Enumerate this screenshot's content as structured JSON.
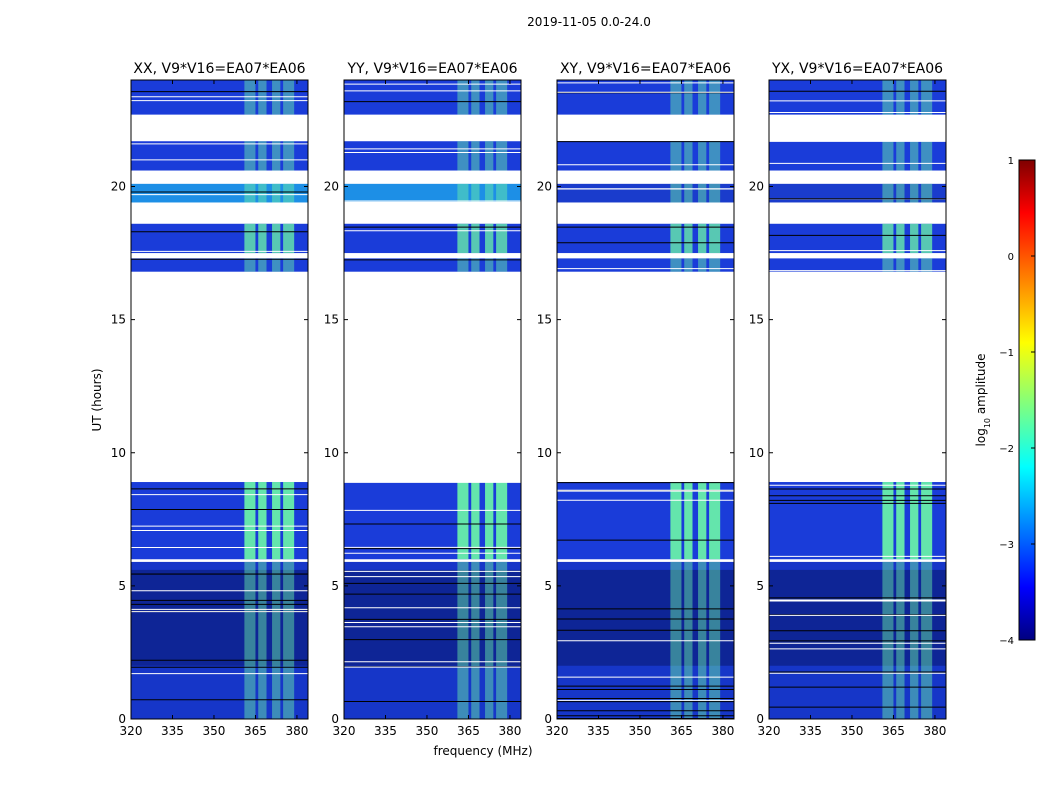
{
  "figure": {
    "title": "2019-11-05 0.0-24.0",
    "xlabel": "frequency (MHz)",
    "ylabel": "UT (hours)"
  },
  "chart_data": {
    "type": "heatmap",
    "title": "2019-11-05 0.0-24.0",
    "xlabel": "frequency (MHz)",
    "ylabel": "UT (hours)",
    "xlim": [
      320,
      384
    ],
    "ylim": [
      0,
      24
    ],
    "xticks": [
      320,
      335,
      350,
      365,
      380
    ],
    "yticks": [
      0,
      5,
      10,
      15,
      20
    ],
    "panels": [
      {
        "title": "XX, V9*V16=EA07*EA06",
        "pol": "XX"
      },
      {
        "title": "YY, V9*V16=EA07*EA06",
        "pol": "YY"
      },
      {
        "title": "XY, V9*V16=EA07*EA06",
        "pol": "XY"
      },
      {
        "title": "YX, V9*V16=EA07*EA06",
        "pol": "YX"
      }
    ],
    "data_blocks_ut": [
      [
        0.0,
        5.9
      ],
      [
        6.0,
        8.9
      ],
      [
        16.8,
        17.3
      ],
      [
        17.5,
        18.6
      ],
      [
        19.4,
        20.1
      ],
      [
        20.6,
        21.7
      ],
      [
        22.7,
        24.0
      ]
    ],
    "rfi_bands_mhz": [
      [
        361,
        365
      ],
      [
        366,
        369
      ],
      [
        371,
        374
      ],
      [
        375,
        379
      ]
    ],
    "colorbar": {
      "label": "log10 amplitude",
      "min": -4,
      "max": 1,
      "ticks": [
        1,
        0,
        -1,
        -2,
        -3,
        -4
      ],
      "colormap": "jet"
    }
  },
  "colors": {
    "background": "#ffffff",
    "low": "#1a3cd9",
    "rfi": "#6df7a6",
    "frame": "#000000"
  }
}
